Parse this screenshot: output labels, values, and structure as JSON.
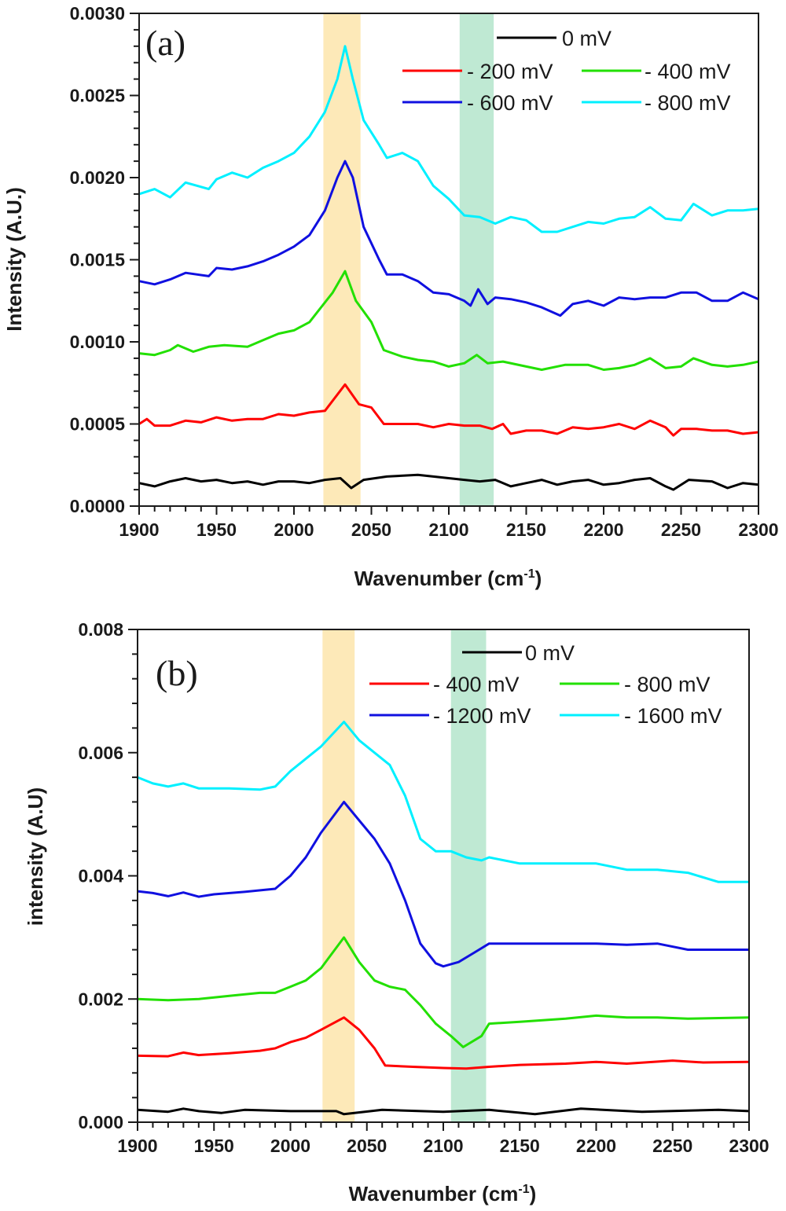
{
  "chart_data": [
    {
      "type": "line",
      "panel_label": "(a)",
      "xlabel": "Wavenumber (cm",
      "xlabel_sup": "-1",
      "xlabel_close": ")",
      "ylabel": "Intensity (A.U.)",
      "xlim": [
        1900,
        2300
      ],
      "ylim": [
        0,
        0.003
      ],
      "xticks": [
        "1900",
        "1950",
        "2000",
        "2050",
        "2100",
        "2150",
        "2200",
        "2250",
        "2300"
      ],
      "yticks": [
        "0.0000",
        "0.0005",
        "0.0010",
        "0.0015",
        "0.0020",
        "0.0025",
        "0.0030"
      ],
      "grid": false,
      "legend_position": "top-right",
      "highlight_bands": [
        {
          "range": [
            2019,
            2043
          ],
          "color": "#fde9b8"
        },
        {
          "range": [
            2107,
            2129
          ],
          "color": "#bfe9d3"
        }
      ],
      "series": [
        {
          "name": "0 mV",
          "color": "#000000",
          "x": [
            1900,
            1910,
            1920,
            1930,
            1940,
            1950,
            1960,
            1970,
            1980,
            1990,
            2000,
            2010,
            2020,
            2030,
            2037,
            2045,
            2060,
            2080,
            2100,
            2110,
            2120,
            2130,
            2140,
            2150,
            2160,
            2170,
            2180,
            2190,
            2200,
            2210,
            2220,
            2230,
            2240,
            2245,
            2255,
            2270,
            2280,
            2290,
            2300
          ],
          "y": [
            0.00014,
            0.00012,
            0.00015,
            0.00017,
            0.00015,
            0.00016,
            0.00014,
            0.00015,
            0.00013,
            0.00015,
            0.00015,
            0.00014,
            0.00016,
            0.00017,
            0.00011,
            0.00016,
            0.00018,
            0.00019,
            0.00017,
            0.00016,
            0.00015,
            0.00016,
            0.00012,
            0.00014,
            0.00016,
            0.00013,
            0.00015,
            0.00016,
            0.00013,
            0.00014,
            0.00016,
            0.00017,
            0.00012,
            0.0001,
            0.00016,
            0.00015,
            0.00011,
            0.00014,
            0.00013
          ]
        },
        {
          "name": "- 200 mV",
          "color": "#ff0000",
          "x": [
            1900,
            1905,
            1910,
            1920,
            1930,
            1940,
            1950,
            1960,
            1970,
            1980,
            1990,
            2000,
            2010,
            2020,
            2033,
            2042,
            2050,
            2058,
            2070,
            2080,
            2090,
            2100,
            2110,
            2120,
            2128,
            2135,
            2140,
            2150,
            2160,
            2170,
            2180,
            2190,
            2200,
            2210,
            2220,
            2230,
            2240,
            2245,
            2250,
            2260,
            2270,
            2280,
            2290,
            2300
          ],
          "y": [
            0.0005,
            0.00053,
            0.00049,
            0.00049,
            0.00052,
            0.00051,
            0.00054,
            0.00052,
            0.00053,
            0.00053,
            0.00056,
            0.00055,
            0.00057,
            0.00058,
            0.00074,
            0.00062,
            0.0006,
            0.0005,
            0.0005,
            0.0005,
            0.00048,
            0.0005,
            0.00049,
            0.00049,
            0.00047,
            0.0005,
            0.00044,
            0.00046,
            0.00046,
            0.00044,
            0.00048,
            0.00047,
            0.00048,
            0.0005,
            0.00047,
            0.00052,
            0.00048,
            0.00043,
            0.00047,
            0.00047,
            0.00046,
            0.00046,
            0.00044,
            0.00045
          ]
        },
        {
          "name": "- 400 mV",
          "color": "#22e000",
          "x": [
            1900,
            1910,
            1920,
            1925,
            1935,
            1945,
            1955,
            1970,
            1980,
            1990,
            2000,
            2010,
            2015,
            2025,
            2033,
            2040,
            2050,
            2058,
            2070,
            2080,
            2090,
            2100,
            2110,
            2118,
            2125,
            2135,
            2150,
            2160,
            2175,
            2190,
            2200,
            2210,
            2220,
            2230,
            2240,
            2250,
            2258,
            2270,
            2280,
            2290,
            2300
          ],
          "y": [
            0.00093,
            0.00092,
            0.00095,
            0.00098,
            0.00094,
            0.00097,
            0.00098,
            0.00097,
            0.00101,
            0.00105,
            0.00107,
            0.00112,
            0.00118,
            0.0013,
            0.00143,
            0.00125,
            0.00112,
            0.00095,
            0.00091,
            0.00089,
            0.00088,
            0.00085,
            0.00087,
            0.00092,
            0.00087,
            0.00088,
            0.00085,
            0.00083,
            0.00086,
            0.00086,
            0.00083,
            0.00084,
            0.00086,
            0.0009,
            0.00084,
            0.00085,
            0.0009,
            0.00086,
            0.00085,
            0.00086,
            0.00088
          ]
        },
        {
          "name": "- 600 mV",
          "color": "#1010e0",
          "x": [
            1900,
            1910,
            1920,
            1930,
            1945,
            1950,
            1960,
            1970,
            1980,
            1990,
            2000,
            2010,
            2020,
            2028,
            2033,
            2038,
            2045,
            2055,
            2060,
            2070,
            2080,
            2090,
            2100,
            2110,
            2114,
            2119,
            2125,
            2130,
            2140,
            2150,
            2160,
            2172,
            2180,
            2190,
            2200,
            2210,
            2220,
            2230,
            2240,
            2250,
            2260,
            2270,
            2280,
            2290,
            2300
          ],
          "y": [
            0.00137,
            0.00135,
            0.00138,
            0.00142,
            0.0014,
            0.00145,
            0.00144,
            0.00146,
            0.00149,
            0.00153,
            0.00158,
            0.00165,
            0.0018,
            0.002,
            0.0021,
            0.002,
            0.0017,
            0.0015,
            0.00141,
            0.00141,
            0.00137,
            0.0013,
            0.00129,
            0.00125,
            0.00122,
            0.00132,
            0.00123,
            0.00127,
            0.00126,
            0.00124,
            0.00121,
            0.00116,
            0.00123,
            0.00125,
            0.00122,
            0.00127,
            0.00126,
            0.00127,
            0.00127,
            0.0013,
            0.0013,
            0.00125,
            0.00125,
            0.0013,
            0.00126
          ]
        },
        {
          "name": "- 800 mV",
          "color": "#00f0ff",
          "x": [
            1900,
            1910,
            1920,
            1930,
            1945,
            1950,
            1960,
            1970,
            1980,
            1990,
            2000,
            2010,
            2020,
            2028,
            2033,
            2038,
            2045,
            2055,
            2060,
            2070,
            2080,
            2090,
            2100,
            2110,
            2120,
            2130,
            2140,
            2150,
            2160,
            2170,
            2180,
            2190,
            2200,
            2210,
            2220,
            2230,
            2240,
            2250,
            2258,
            2270,
            2280,
            2290,
            2300
          ],
          "y": [
            0.0019,
            0.00193,
            0.00188,
            0.00197,
            0.00193,
            0.00199,
            0.00203,
            0.002,
            0.00206,
            0.0021,
            0.00215,
            0.00225,
            0.0024,
            0.0026,
            0.0028,
            0.0026,
            0.00235,
            0.0022,
            0.00212,
            0.00215,
            0.0021,
            0.00195,
            0.00187,
            0.00177,
            0.00176,
            0.00172,
            0.00176,
            0.00174,
            0.00167,
            0.00167,
            0.0017,
            0.00173,
            0.00172,
            0.00175,
            0.00176,
            0.00182,
            0.00175,
            0.00174,
            0.00184,
            0.00177,
            0.0018,
            0.0018,
            0.00181
          ]
        }
      ]
    },
    {
      "type": "line",
      "panel_label": "(b)",
      "xlabel": "Wavenumber (cm",
      "xlabel_sup": "-1",
      "xlabel_close": ")",
      "ylabel": "intensity (A.U)",
      "xlim": [
        1900,
        2300
      ],
      "ylim": [
        0,
        0.008
      ],
      "xticks": [
        "1900",
        "1950",
        "2000",
        "2050",
        "2100",
        "2150",
        "2200",
        "2250",
        "2300"
      ],
      "yticks": [
        "0.000",
        "0.002",
        "0.004",
        "0.006",
        "0.008"
      ],
      "grid": false,
      "legend_position": "top-right",
      "highlight_bands": [
        {
          "range": [
            2021,
            2042
          ],
          "color": "#fde9b8"
        },
        {
          "range": [
            2105,
            2128
          ],
          "color": "#bfe9d3"
        }
      ],
      "series": [
        {
          "name": "0 mV",
          "color": "#000000",
          "x": [
            1900,
            1920,
            1930,
            1940,
            1955,
            1970,
            2000,
            2030,
            2035,
            2060,
            2100,
            2130,
            2160,
            2190,
            2230,
            2280,
            2300
          ],
          "y": [
            0.0002,
            0.00017,
            0.00022,
            0.00018,
            0.00015,
            0.0002,
            0.00018,
            0.00018,
            0.00013,
            0.0002,
            0.00017,
            0.0002,
            0.00013,
            0.00022,
            0.00017,
            0.0002,
            0.00018
          ]
        },
        {
          "name": "- 400 mV",
          "color": "#ff0000",
          "x": [
            1900,
            1920,
            1930,
            1940,
            1960,
            1980,
            1990,
            2000,
            2010,
            2020,
            2035,
            2045,
            2055,
            2062,
            2080,
            2100,
            2115,
            2130,
            2150,
            2180,
            2200,
            2220,
            2250,
            2270,
            2300
          ],
          "y": [
            0.00108,
            0.00107,
            0.00113,
            0.00109,
            0.00112,
            0.00116,
            0.0012,
            0.0013,
            0.00137,
            0.0015,
            0.0017,
            0.0015,
            0.0012,
            0.00092,
            0.0009,
            0.00088,
            0.00087,
            0.0009,
            0.00093,
            0.00095,
            0.00098,
            0.00095,
            0.001,
            0.00097,
            0.00098
          ]
        },
        {
          "name": "- 800 mV",
          "color": "#22e000",
          "x": [
            1900,
            1920,
            1940,
            1960,
            1980,
            1990,
            2000,
            2010,
            2020,
            2035,
            2045,
            2055,
            2065,
            2075,
            2085,
            2095,
            2105,
            2113,
            2125,
            2130,
            2150,
            2180,
            2200,
            2220,
            2240,
            2260,
            2300
          ],
          "y": [
            0.002,
            0.00198,
            0.002,
            0.00205,
            0.0021,
            0.0021,
            0.0022,
            0.0023,
            0.0025,
            0.003,
            0.0026,
            0.0023,
            0.0022,
            0.00215,
            0.0019,
            0.0016,
            0.0014,
            0.00122,
            0.0014,
            0.0016,
            0.00163,
            0.00168,
            0.00173,
            0.0017,
            0.0017,
            0.00168,
            0.0017
          ]
        },
        {
          "name": "- 1200 mV",
          "color": "#1010e0",
          "x": [
            1900,
            1910,
            1920,
            1930,
            1940,
            1950,
            1970,
            1990,
            2000,
            2010,
            2020,
            2035,
            2045,
            2055,
            2065,
            2075,
            2085,
            2095,
            2100,
            2110,
            2120,
            2130,
            2150,
            2170,
            2200,
            2220,
            2240,
            2260,
            2300
          ],
          "y": [
            0.00375,
            0.00372,
            0.00367,
            0.00373,
            0.00366,
            0.0037,
            0.00374,
            0.00379,
            0.004,
            0.0043,
            0.0047,
            0.0052,
            0.0049,
            0.0046,
            0.0042,
            0.0036,
            0.0029,
            0.00258,
            0.00253,
            0.0026,
            0.00275,
            0.0029,
            0.0029,
            0.0029,
            0.0029,
            0.00288,
            0.0029,
            0.0028,
            0.0028
          ]
        },
        {
          "name": "- 1600 mV",
          "color": "#00f0ff",
          "x": [
            1900,
            1910,
            1920,
            1930,
            1940,
            1960,
            1980,
            1990,
            2000,
            2010,
            2020,
            2035,
            2045,
            2055,
            2065,
            2075,
            2085,
            2095,
            2105,
            2115,
            2125,
            2130,
            2150,
            2170,
            2190,
            2200,
            2220,
            2240,
            2260,
            2280,
            2300
          ],
          "y": [
            0.0056,
            0.0055,
            0.00545,
            0.0055,
            0.00542,
            0.00542,
            0.0054,
            0.00545,
            0.0057,
            0.0059,
            0.0061,
            0.0065,
            0.0062,
            0.006,
            0.0058,
            0.0053,
            0.0046,
            0.0044,
            0.0044,
            0.0043,
            0.00425,
            0.0043,
            0.0042,
            0.0042,
            0.0042,
            0.0042,
            0.0041,
            0.0041,
            0.00405,
            0.0039,
            0.0039
          ]
        }
      ]
    }
  ]
}
